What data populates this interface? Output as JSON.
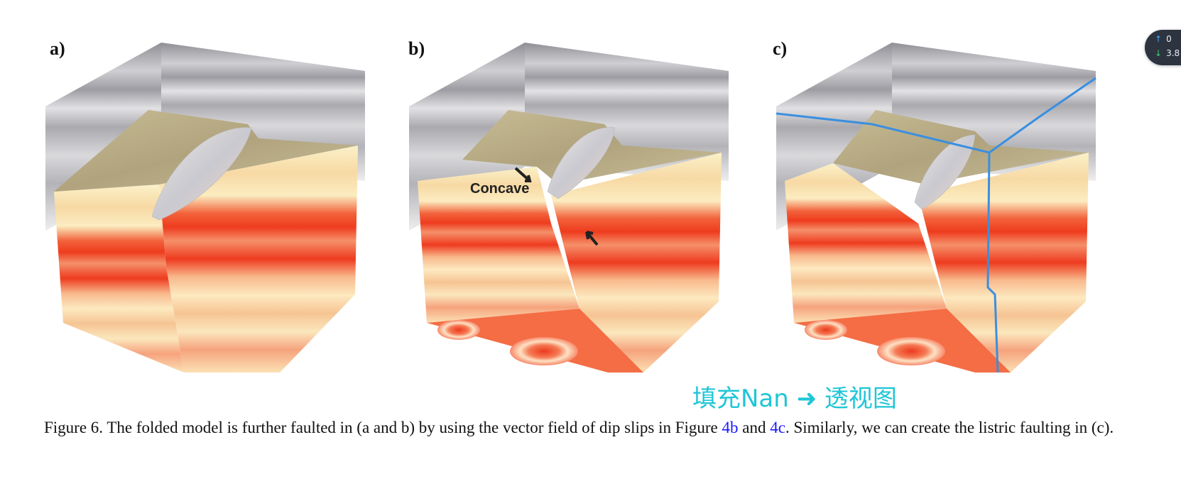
{
  "panels": [
    {
      "label": "a)"
    },
    {
      "label": "b)"
    },
    {
      "label": "c)"
    }
  ],
  "annotation_concave": "Concave",
  "overlay_note": "填充Nan ➜ 透视图",
  "speed_widget": {
    "up_value": "0",
    "down_value": "3.8"
  },
  "caption": {
    "part1": "Figure 6.  The folded model is further faulted in (a and b) by using the vector field of dip slips in Figure ",
    "ref1": "4b",
    "part2": " and ",
    "ref2": "4c",
    "part3": ". Similarly, we can create the listric faulting in (c)."
  },
  "colors": {
    "caption_ref": "#1a1aff",
    "overlay_note": "#1fc6d6",
    "polyline": "#3a8fe0"
  }
}
